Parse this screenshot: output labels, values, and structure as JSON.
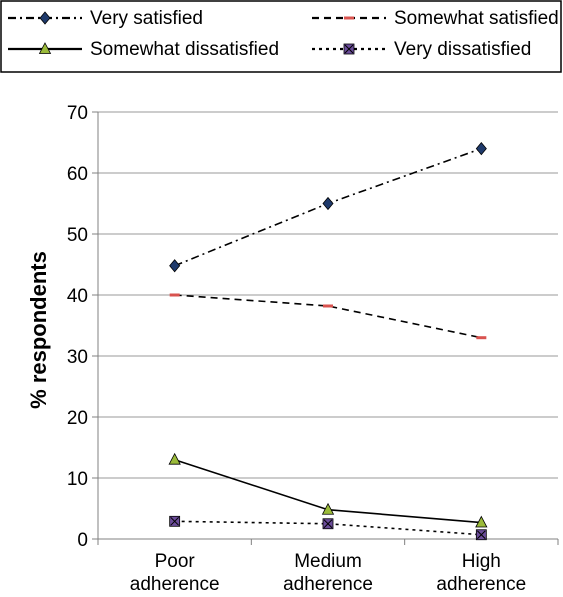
{
  "chart_data": {
    "type": "line",
    "categories": [
      [
        "Poor",
        "adherence"
      ],
      [
        "Medium",
        "adherence"
      ],
      [
        "High",
        "adherence"
      ]
    ],
    "ylabel": "% respondents",
    "xlabel": "",
    "title": "",
    "ylim": [
      0,
      70
    ],
    "yticks": [
      0,
      10,
      20,
      30,
      40,
      50,
      60,
      70
    ],
    "grid": true,
    "legend_position": "top",
    "series": [
      {
        "name": "Very satisfied",
        "values": [
          44.8,
          55,
          64
        ],
        "line_color": "#000000",
        "line_style": "dash-dot",
        "marker": "diamond",
        "marker_color": "#1f3a6b"
      },
      {
        "name": "Somewhat satisfied",
        "values": [
          40,
          38.2,
          33
        ],
        "line_color": "#000000",
        "line_style": "dashed",
        "marker": "dash",
        "marker_color": "#d9534f"
      },
      {
        "name": "Somewhat dissatisfied",
        "values": [
          13,
          4.8,
          2.7
        ],
        "line_color": "#000000",
        "line_style": "solid",
        "marker": "triangle",
        "marker_color": "#9bbb3a"
      },
      {
        "name": "Very dissatisfied",
        "values": [
          2.9,
          2.5,
          0.7
        ],
        "line_color": "#000000",
        "line_style": "dotted",
        "marker": "x-square",
        "marker_color": "#6b4c9a"
      }
    ]
  }
}
